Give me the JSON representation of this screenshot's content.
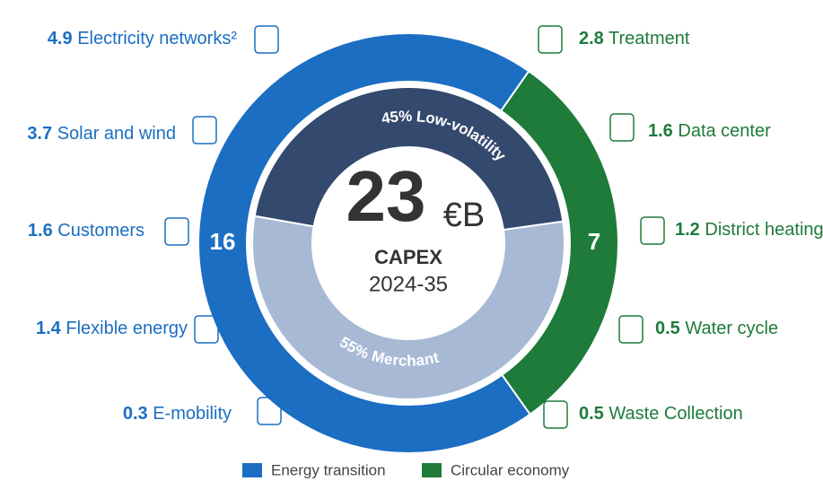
{
  "chart_data": {
    "type": "donut",
    "categories": [
      "Energy transition",
      "Circular economy"
    ],
    "values": [
      16,
      7
    ],
    "colors": [
      "#1b6ec2",
      "#1e7b3a"
    ],
    "total": 23,
    "unit": "€B",
    "center_label": "CAPEX",
    "period": "2024-35",
    "inner": {
      "categories": [
        "Low-volatility",
        "Merchant"
      ],
      "values": [
        45,
        55
      ],
      "value_labels": [
        "45%",
        "55%"
      ],
      "colors": [
        "#34496e",
        "#a8b9d6"
      ]
    },
    "breakdown": [
      {
        "values": [
          4.9,
          3.7,
          1.6,
          1.4,
          0.3
        ],
        "labels": [
          "Electricity networks²",
          "Solar and wind",
          "Customers",
          "Flexible energy",
          "E-mobility"
        ]
      },
      {
        "values": [
          2.8,
          1.6,
          1.2,
          0.5,
          0.5
        ],
        "labels": [
          "Treatment",
          "Data center",
          "District heating",
          "Water cycle",
          "Waste Collection"
        ]
      }
    ]
  }
}
